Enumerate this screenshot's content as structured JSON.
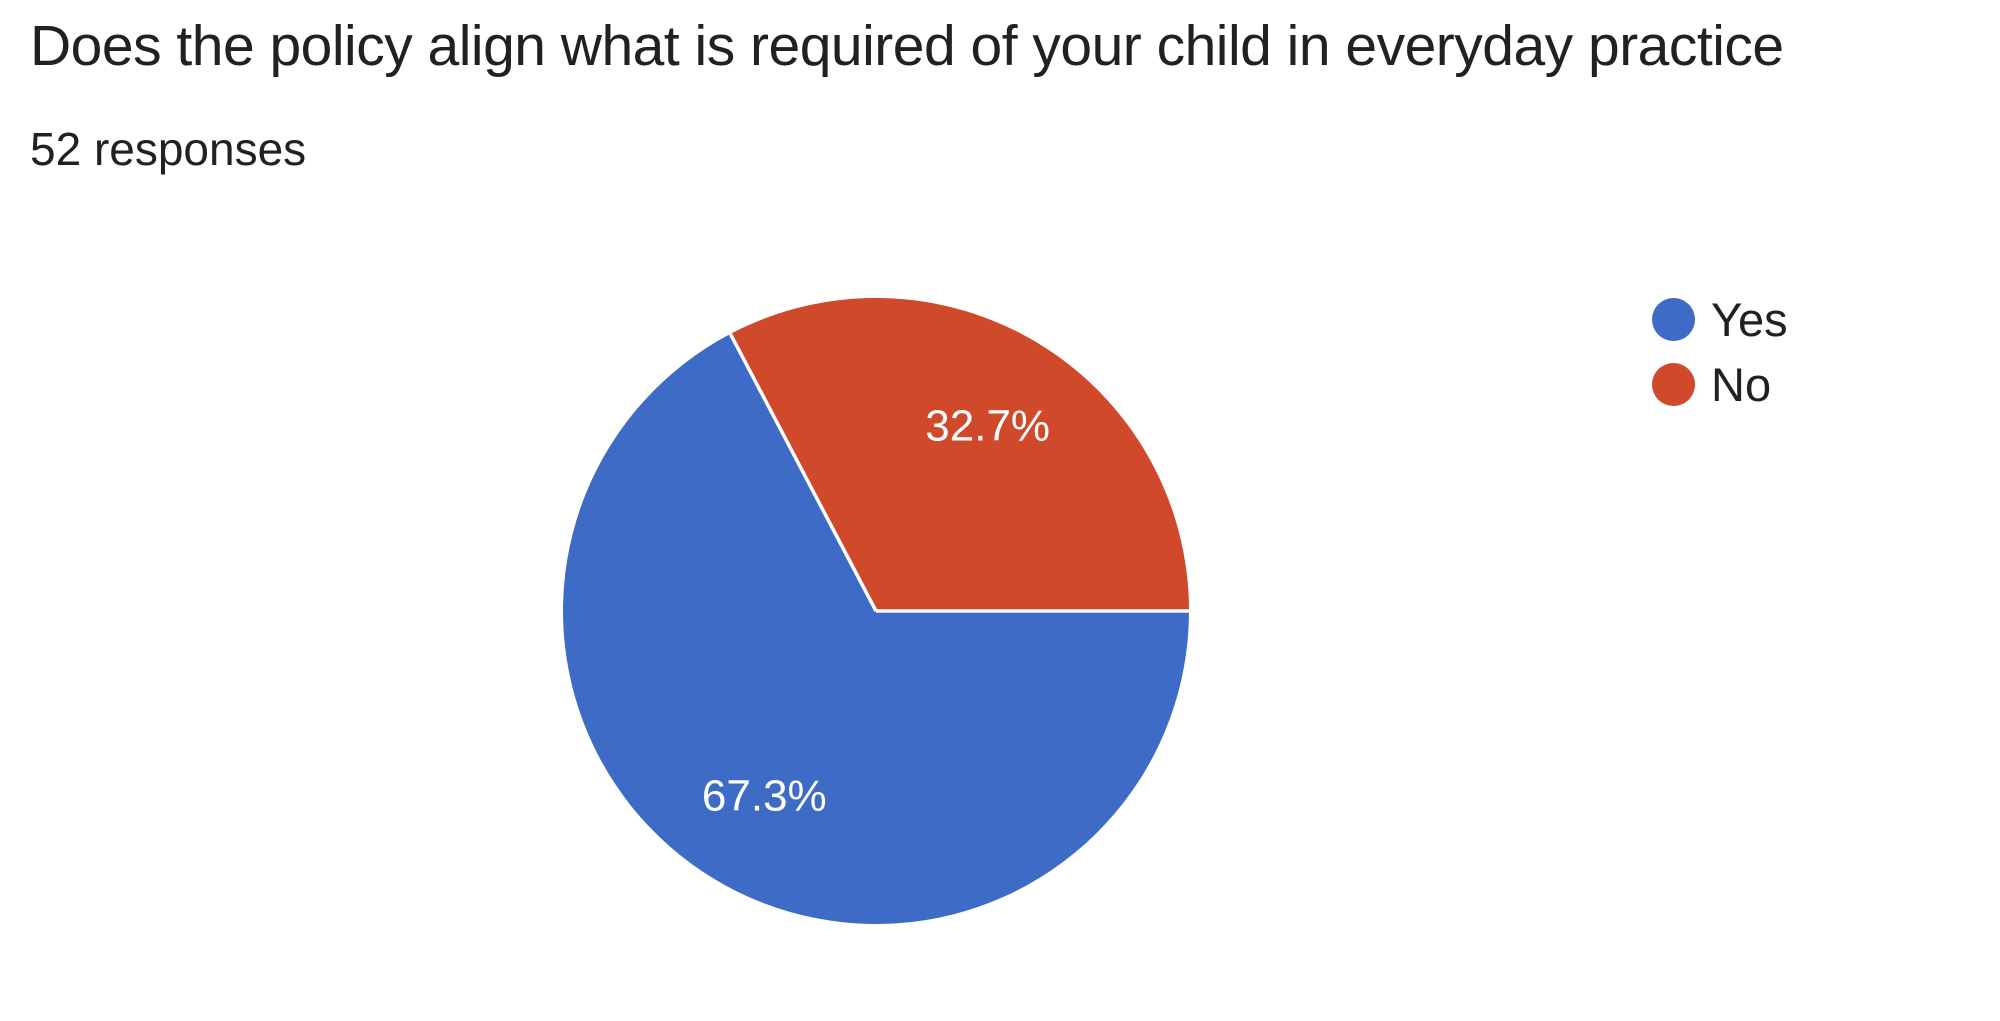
{
  "header": {
    "title": "Does the policy align what is required of your child in everyday practice",
    "responses": "52 responses"
  },
  "chart_data": {
    "type": "pie",
    "title": "Does the policy align what is required of your child in everyday practice",
    "subtitle": "52 responses",
    "total_responses": 52,
    "labels": [
      "Yes",
      "No"
    ],
    "values": [
      67.3,
      32.7
    ],
    "slice_labels": [
      "67.3%",
      "32.7%"
    ],
    "colors": [
      "#3d6bc6",
      "#d1492b"
    ],
    "label_color": "#ffffff",
    "divider_color": "#ffffff",
    "legend_position": "right",
    "start_angle_deg": 0,
    "direction": "clockwise"
  }
}
